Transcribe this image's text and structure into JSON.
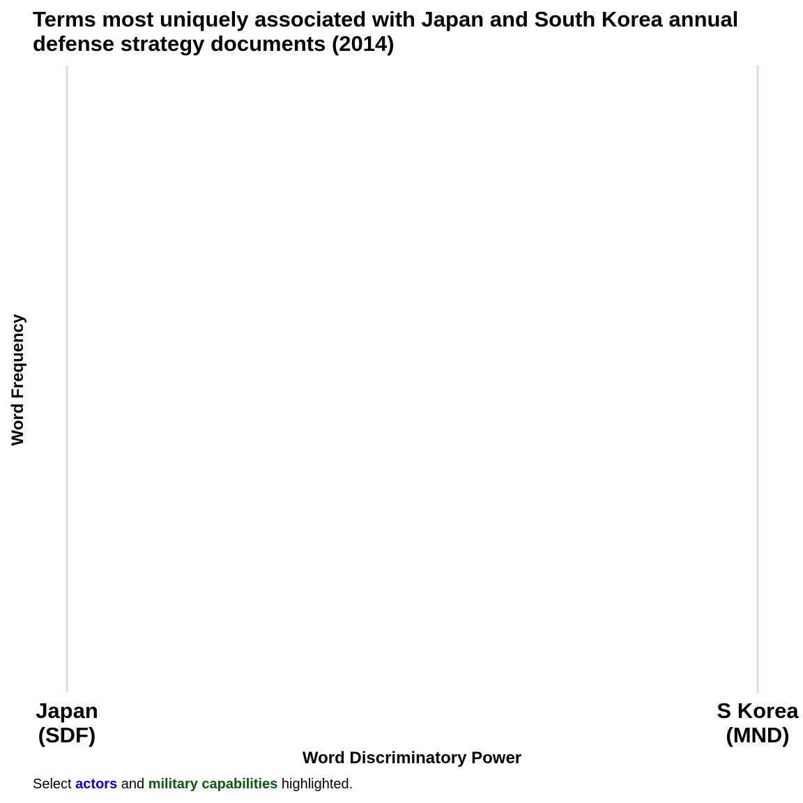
{
  "chart_data": {
    "type": "scatter",
    "title_lines": [
      "Terms most uniquely associated with Japan and South Korea annual",
      "defense strategy documents (2014)"
    ],
    "xlabel": "Word Discriminatory Power",
    "ylabel": "Word Frequency",
    "x_ticks": [
      {
        "lines": [
          "Japan",
          "(SDF)"
        ],
        "value": 0
      },
      {
        "lines": [
          "S Korea",
          "(MND)"
        ],
        "value": 1
      }
    ],
    "xlim": [
      0,
      1
    ],
    "grid": "vertical",
    "points": []
  },
  "caption": {
    "prefix": "Select",
    "actors": "actors",
    "middle": "and",
    "capabilities": "military capabilities",
    "suffix": "highlighted."
  },
  "colors": {
    "grid": "#dddddd",
    "actors": "#0000ee",
    "capabilities": "#0a5c0a"
  }
}
